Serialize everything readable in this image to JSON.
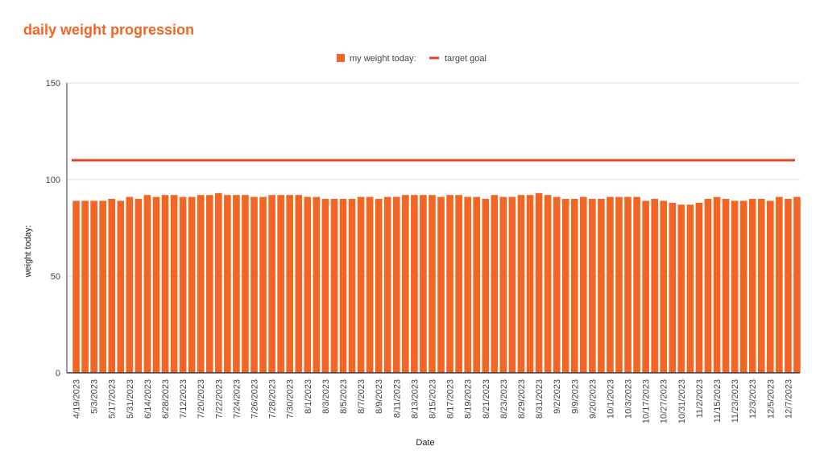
{
  "colors": {
    "bar": "#f26522",
    "goal": "#e04427",
    "grid": "#dddddd",
    "axis": "#333333",
    "title": "#f26522"
  },
  "chart_data": {
    "type": "bar",
    "title": "daily weight progression",
    "xlabel": "Date",
    "ylabel": "weight today:",
    "ylim": [
      0,
      150
    ],
    "yticks": [
      0,
      50,
      100,
      150
    ],
    "grid": true,
    "legend_position": "top-center",
    "bar_count": 82,
    "x_tick_labels": [
      "4/19/2023",
      "5/3/2023",
      "5/17/2023",
      "5/31/2023",
      "6/14/2023",
      "6/28/2023",
      "7/12/2023",
      "7/20/2023",
      "7/22/2023",
      "7/24/2023",
      "7/26/2023",
      "7/28/2023",
      "7/30/2023",
      "8/1/2023",
      "8/3/2023",
      "8/5/2023",
      "8/7/2023",
      "8/9/2023",
      "8/11/2023",
      "8/13/2023",
      "8/15/2023",
      "8/17/2023",
      "8/19/2023",
      "8/21/2023",
      "8/23/2023",
      "8/29/2023",
      "8/31/2023",
      "9/2/2023",
      "9/9/2023",
      "9/20/2023",
      "10/1/2023",
      "10/3/2023",
      "10/17/2023",
      "10/27/2023",
      "10/31/2023",
      "11/2/2023",
      "11/15/2023",
      "11/23/2023",
      "12/3/2023",
      "12/5/2023",
      "12/7/2023"
    ],
    "series": [
      {
        "name": "my weight today:",
        "type": "bar",
        "values": [
          89,
          89,
          89,
          89,
          90,
          89,
          91,
          90,
          92,
          91,
          92,
          92,
          91,
          91,
          92,
          92,
          93,
          92,
          92,
          92,
          91,
          91,
          92,
          92,
          92,
          92,
          91,
          91,
          90,
          90,
          90,
          90,
          91,
          91,
          90,
          91,
          91,
          92,
          92,
          92,
          92,
          91,
          92,
          92,
          91,
          91,
          90,
          92,
          91,
          91,
          92,
          92,
          93,
          92,
          91,
          90,
          90,
          91,
          90,
          90,
          91,
          91,
          91,
          91,
          89,
          90,
          89,
          88,
          87,
          87,
          88,
          90,
          91,
          90,
          89,
          89,
          90,
          90,
          89,
          91,
          90,
          91
        ]
      },
      {
        "name": "target goal",
        "type": "line",
        "value": 110
      }
    ]
  }
}
